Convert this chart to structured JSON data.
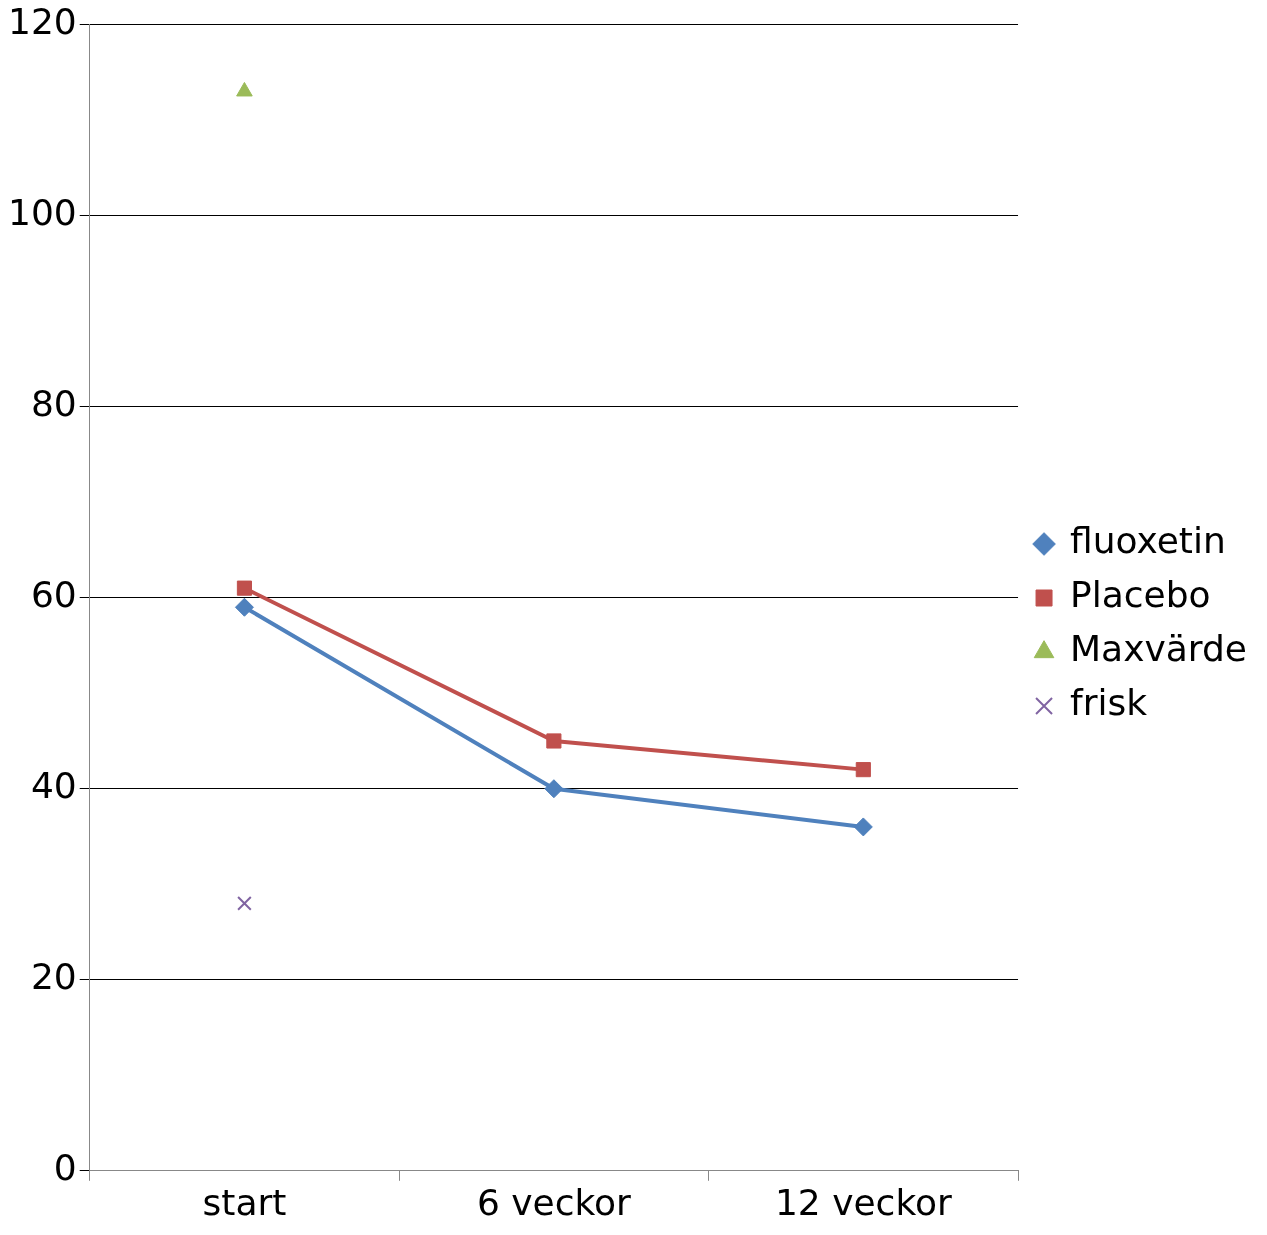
{
  "chart_data": {
    "type": "line",
    "categories": [
      "start",
      "6 veckor",
      "12 veckor"
    ],
    "series": [
      {
        "name": "fluoxetin",
        "color": "#4f81bd",
        "marker": "diamond",
        "values": [
          59,
          40,
          36
        ]
      },
      {
        "name": "Placebo",
        "color": "#c0504d",
        "marker": "square",
        "values": [
          61,
          45,
          42
        ]
      },
      {
        "name": "Maxvärde",
        "color": "#9bbb59",
        "marker": "triangle",
        "values": [
          113,
          null,
          null
        ]
      },
      {
        "name": "frisk",
        "color": "#8064a2",
        "marker": "cross",
        "values": [
          28,
          null,
          null
        ]
      }
    ],
    "ylim": [
      0,
      120
    ],
    "yticks": [
      0,
      20,
      40,
      60,
      80,
      100,
      120
    ],
    "grid": "y",
    "legend": "right"
  }
}
